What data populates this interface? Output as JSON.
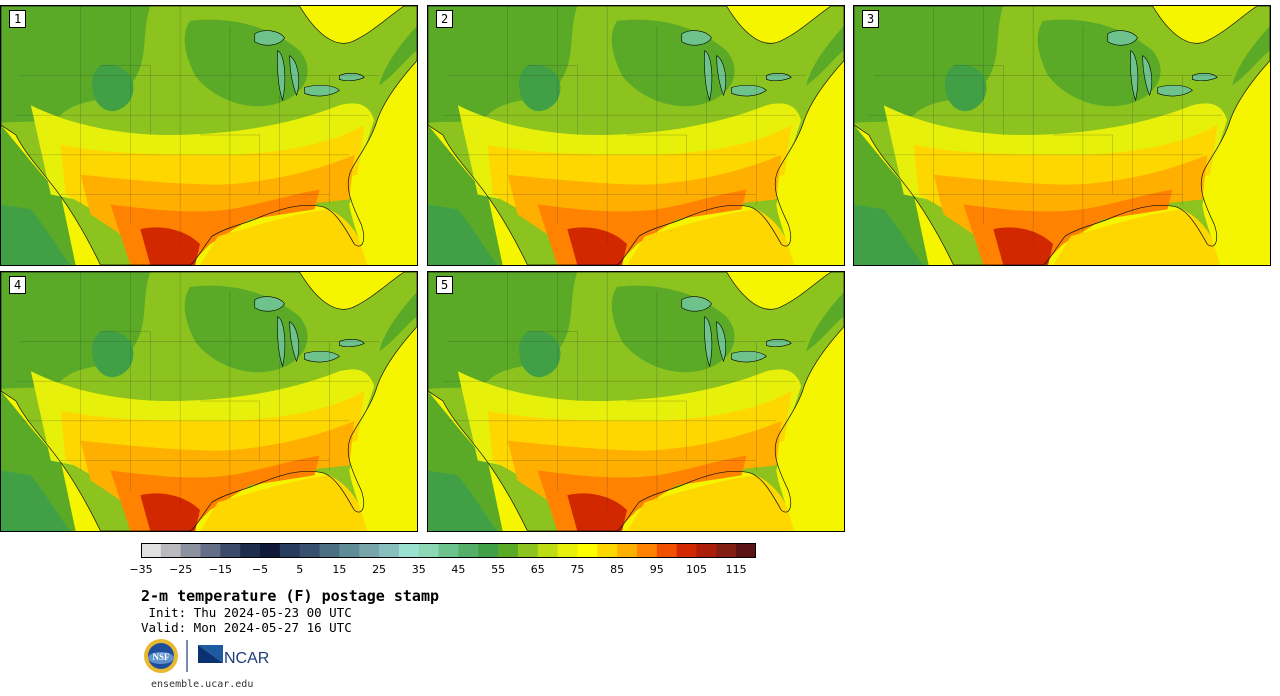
{
  "panels": [
    {
      "label": "1"
    },
    {
      "label": "2"
    },
    {
      "label": "3"
    },
    {
      "label": "4"
    },
    {
      "label": "5"
    }
  ],
  "colorbar": {
    "colors": [
      "#e1e1e1",
      "#b9b9be",
      "#8c91a0",
      "#646e87",
      "#3c4b69",
      "#1e2d4b",
      "#0f1937",
      "#283c5f",
      "#37506e",
      "#4b6e82",
      "#5f8c96",
      "#78a5aa",
      "#87bebe",
      "#9be1d2",
      "#8cd7b4",
      "#6ec38c",
      "#55af69",
      "#41a046",
      "#5aaa28",
      "#8cc31e",
      "#bedc14",
      "#e6f00a",
      "#ffff00",
      "#ffd700",
      "#ffaf00",
      "#ff8200",
      "#f05000",
      "#d22800",
      "#aa1e0a",
      "#821e14",
      "#5a1414"
    ],
    "tick_labels": [
      "−35",
      "−25",
      "−15",
      "−5",
      "5",
      "15",
      "25",
      "35",
      "45",
      "55",
      "65",
      "75",
      "85",
      "95",
      "105",
      "115"
    ]
  },
  "title": "2-m temperature (F) postage stamp",
  "init_line": " Init: Thu 2024-05-23 00 UTC",
  "valid_line": "Valid: Mon 2024-05-27 16 UTC",
  "logos": {
    "nsf": "NSF",
    "ncar": "NCAR"
  },
  "url": "ensemble.ucar.edu"
}
